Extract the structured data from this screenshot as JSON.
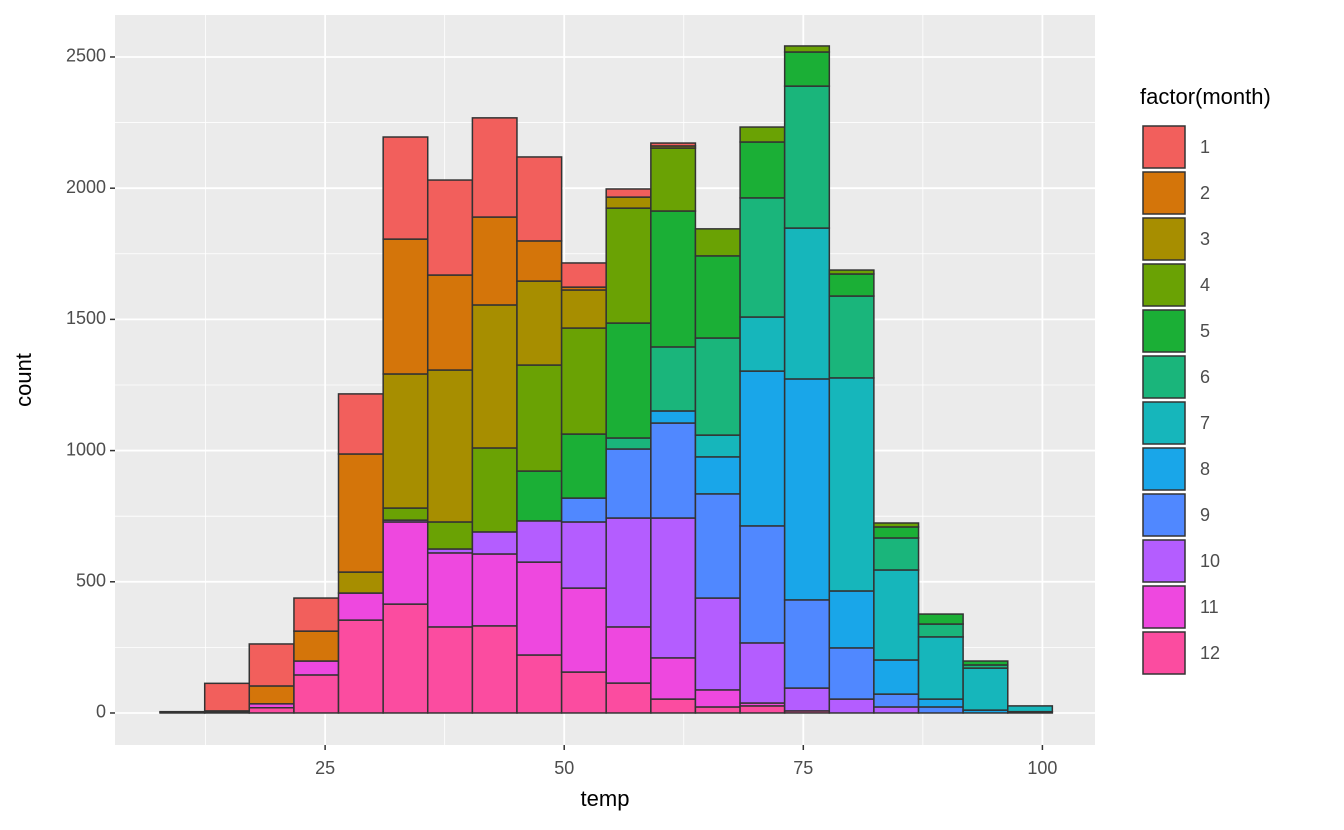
{
  "chart_data": {
    "type": "histogram",
    "x_label": "temp",
    "y_label": "count",
    "legend_title": "factor(month)",
    "bins": [
      7.74,
      12.41,
      17.07,
      21.74,
      26.4,
      31.07,
      35.73,
      40.4,
      45.06,
      49.73,
      54.39,
      59.06,
      63.72,
      68.39,
      73.05,
      77.72,
      82.38,
      87.05,
      91.71,
      96.38,
      101.04
    ],
    "series": [
      {
        "name": "1",
        "color": "#F25F5C",
        "values": [
          2,
          105,
          160,
          126,
          229,
          389,
          362,
          378,
          320,
          92,
          31,
          11,
          0,
          0,
          0,
          0,
          0,
          0,
          0,
          0
        ]
      },
      {
        "name": "2",
        "color": "#D4750A",
        "values": [
          0,
          3,
          68,
          114,
          450,
          514,
          362,
          335,
          153,
          11,
          0,
          0,
          0,
          0,
          0,
          0,
          0,
          0,
          0,
          0
        ]
      },
      {
        "name": "3",
        "color": "#A78E00",
        "values": [
          0,
          0,
          0,
          0,
          80,
          511,
          579,
          545,
          320,
          145,
          42,
          8,
          0,
          0,
          0,
          0,
          0,
          0,
          0,
          0
        ]
      },
      {
        "name": "4",
        "color": "#6AA204",
        "values": [
          0,
          0,
          0,
          0,
          0,
          46,
          103,
          320,
          404,
          404,
          438,
          240,
          103,
          57,
          23,
          15,
          15,
          0,
          0,
          0
        ]
      },
      {
        "name": "5",
        "color": "#1BAF36",
        "values": [
          0,
          0,
          0,
          0,
          0,
          0,
          0,
          0,
          190,
          244,
          438,
          518,
          313,
          213,
          130,
          84,
          42,
          38,
          15,
          0
        ]
      },
      {
        "name": "6",
        "color": "#1AB57B",
        "values": [
          0,
          0,
          0,
          0,
          0,
          0,
          0,
          0,
          0,
          0,
          42,
          244,
          370,
          454,
          541,
          312,
          122,
          49,
          12,
          0
        ]
      },
      {
        "name": "7",
        "color": "#16B6BB",
        "values": [
          0,
          0,
          0,
          0,
          0,
          0,
          0,
          0,
          0,
          0,
          0,
          0,
          83,
          206,
          575,
          812,
          343,
          237,
          160,
          22
        ]
      },
      {
        "name": "8",
        "color": "#19A6E9",
        "values": [
          0,
          0,
          0,
          0,
          0,
          0,
          0,
          0,
          0,
          0,
          0,
          46,
          141,
          590,
          842,
          217,
          130,
          30,
          11,
          5
        ]
      },
      {
        "name": "9",
        "color": "#5088FF",
        "values": [
          0,
          0,
          0,
          0,
          0,
          0,
          0,
          0,
          0,
          91,
          263,
          362,
          397,
          446,
          336,
          195,
          49,
          23,
          0,
          0
        ]
      },
      {
        "name": "10",
        "color": "#B45DFF",
        "values": [
          0,
          0,
          0,
          0,
          0,
          7,
          15,
          84,
          157,
          252,
          415,
          533,
          350,
          229,
          87,
          53,
          23,
          0,
          0,
          0
        ]
      },
      {
        "name": "11",
        "color": "#EE48DF",
        "values": [
          0,
          0,
          15,
          53,
          103,
          313,
          282,
          274,
          354,
          320,
          214,
          157,
          65,
          11,
          0,
          0,
          0,
          0,
          0,
          0
        ]
      },
      {
        "name": "12",
        "color": "#FB4CA0",
        "values": [
          3,
          5,
          20,
          145,
          354,
          415,
          328,
          332,
          221,
          156,
          114,
          53,
          23,
          27,
          8,
          0,
          0,
          0,
          0,
          0
        ]
      }
    ],
    "xlim": [
      3.03,
      105.5
    ],
    "ylim": [
      -122,
      2660
    ],
    "xticks": [
      25,
      50,
      75,
      100
    ],
    "yticks": [
      0,
      500,
      1000,
      1500,
      2000,
      2500
    ],
    "grid": true
  }
}
